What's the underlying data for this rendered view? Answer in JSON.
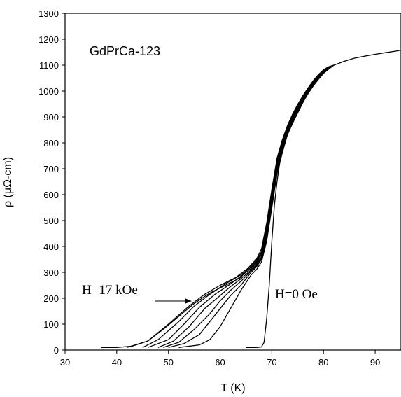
{
  "chart_data": {
    "type": "line",
    "title": "",
    "xlabel": "T (K)",
    "ylabel": "ρ (μΩ-cm)",
    "xlim": [
      30,
      95
    ],
    "ylim": [
      0,
      1300
    ],
    "xticks": [
      30,
      40,
      50,
      60,
      70,
      80,
      90
    ],
    "yticks": [
      0,
      100,
      200,
      300,
      400,
      500,
      600,
      700,
      800,
      900,
      1000,
      1100,
      1200,
      1300
    ],
    "grid": false,
    "legend": "none",
    "line_color": "#000000",
    "annotations": {
      "sample_label": "GdPrCa-123",
      "field_high_label": "H=17 kOe",
      "field_zero_label": "H=0 Oe"
    },
    "series": [
      {
        "x": [
          65,
          67,
          68,
          68.5,
          69,
          69.5,
          70,
          70.5,
          71,
          71.5,
          72,
          73,
          74,
          75,
          76,
          77,
          78,
          79,
          80,
          81,
          82,
          84,
          86,
          88,
          90,
          92,
          94,
          95
        ],
        "y": [
          10,
          10,
          12,
          30,
          120,
          250,
          420,
          560,
          650,
          720,
          770,
          830,
          880,
          920,
          960,
          990,
          1020,
          1045,
          1070,
          1085,
          1100,
          1115,
          1127,
          1135,
          1142,
          1148,
          1154,
          1158
        ]
      },
      {
        "x": [
          52,
          56,
          58,
          60,
          62,
          64,
          66,
          67,
          68,
          69,
          70,
          71,
          72,
          73,
          74,
          75,
          76,
          77,
          78,
          79,
          80,
          81,
          82
        ],
        "y": [
          10,
          20,
          40,
          90,
          160,
          230,
          290,
          310,
          340,
          420,
          550,
          680,
          760,
          830,
          875,
          915,
          955,
          990,
          1020,
          1045,
          1068,
          1085,
          1100
        ]
      },
      {
        "x": [
          50,
          53,
          56,
          58,
          60,
          62,
          64,
          66,
          67,
          68,
          69,
          70,
          71,
          72,
          73,
          74,
          75,
          76,
          77,
          78,
          79,
          80,
          81,
          82
        ],
        "y": [
          10,
          25,
          60,
          110,
          160,
          210,
          250,
          300,
          320,
          350,
          430,
          560,
          690,
          770,
          835,
          880,
          920,
          958,
          992,
          1022,
          1047,
          1070,
          1087,
          1100
        ]
      },
      {
        "x": [
          49,
          52,
          55,
          58,
          60,
          62,
          64,
          66,
          67,
          68,
          69,
          70,
          71,
          72,
          73,
          74,
          75,
          76,
          77,
          78,
          79,
          80,
          81,
          82
        ],
        "y": [
          10,
          30,
          80,
          140,
          190,
          230,
          265,
          305,
          325,
          355,
          440,
          570,
          700,
          778,
          840,
          885,
          925,
          962,
          995,
          1025,
          1050,
          1072,
          1088,
          1100
        ]
      },
      {
        "x": [
          48,
          51,
          54,
          57,
          60,
          62,
          64,
          66,
          67,
          68,
          69,
          70,
          71,
          72,
          73,
          74,
          75,
          76,
          77,
          78,
          79,
          80,
          81,
          82
        ],
        "y": [
          10,
          35,
          90,
          160,
          210,
          245,
          275,
          310,
          330,
          360,
          450,
          580,
          710,
          785,
          845,
          890,
          930,
          966,
          998,
          1027,
          1052,
          1074,
          1089,
          1100
        ]
      },
      {
        "x": [
          46,
          50,
          53,
          56,
          59,
          62,
          64,
          66,
          67,
          68,
          69,
          70,
          71,
          72,
          73,
          74,
          75,
          76,
          77,
          78,
          79,
          80,
          81,
          82
        ],
        "y": [
          10,
          40,
          100,
          165,
          215,
          255,
          285,
          315,
          335,
          368,
          460,
          590,
          720,
          792,
          850,
          895,
          935,
          970,
          1002,
          1030,
          1055,
          1076,
          1090,
          1100
        ]
      },
      {
        "x": [
          45,
          48,
          52,
          55,
          58,
          61,
          64,
          66,
          67,
          68,
          69,
          70,
          71,
          72,
          73,
          74,
          75,
          76,
          77,
          78,
          79,
          80,
          81,
          82
        ],
        "y": [
          10,
          40,
          110,
          170,
          215,
          255,
          290,
          320,
          340,
          375,
          470,
          600,
          728,
          800,
          855,
          900,
          940,
          974,
          1005,
          1033,
          1058,
          1078,
          1091,
          1100
        ]
      },
      {
        "x": [
          42,
          46,
          50,
          54,
          57,
          60,
          63,
          66,
          67,
          68,
          69,
          70,
          71,
          72,
          73,
          74,
          75,
          76,
          77,
          78,
          79,
          80,
          81,
          82
        ],
        "y": [
          10,
          35,
          100,
          170,
          215,
          250,
          280,
          325,
          345,
          380,
          480,
          610,
          735,
          805,
          860,
          905,
          944,
          978,
          1008,
          1036,
          1060,
          1080,
          1092,
          1100
        ]
      },
      {
        "x": [
          37,
          40,
          43,
          46,
          49,
          52,
          55,
          58,
          61,
          64,
          66,
          67,
          68,
          69,
          70,
          71,
          72,
          73,
          74,
          75,
          76,
          77,
          78,
          79,
          80,
          81,
          82
        ],
        "y": [
          10,
          10,
          15,
          35,
          80,
          130,
          180,
          220,
          250,
          280,
          330,
          350,
          390,
          490,
          620,
          740,
          810,
          865,
          910,
          948,
          982,
          1012,
          1040,
          1063,
          1082,
          1094,
          1100
        ]
      }
    ]
  }
}
